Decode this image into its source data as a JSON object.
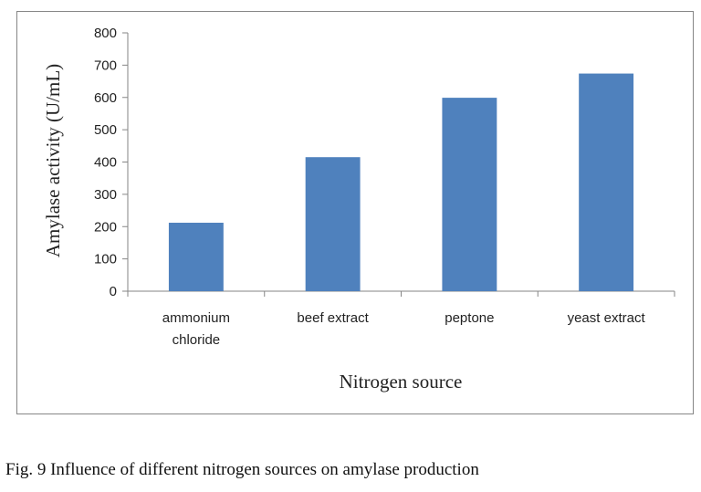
{
  "chart_data": {
    "type": "bar",
    "categories": [
      "ammonium chloride",
      "beef extract",
      "peptone",
      "yeast extract"
    ],
    "category_lines": [
      [
        "ammonium",
        "chloride"
      ],
      [
        "beef extract"
      ],
      [
        "peptone"
      ],
      [
        "yeast extract"
      ]
    ],
    "values": [
      212,
      415,
      599,
      674
    ],
    "xlabel": "Nitrogen source",
    "ylabel": "Amylase activity (U/mL)",
    "ylim": [
      0,
      800
    ],
    "yticks": [
      0,
      100,
      200,
      300,
      400,
      500,
      600,
      700,
      800
    ],
    "grid": false,
    "legend": "none",
    "bar_color": "#4F81BD"
  },
  "caption": "Fig. 9 Influence of different nitrogen sources on amylase production"
}
